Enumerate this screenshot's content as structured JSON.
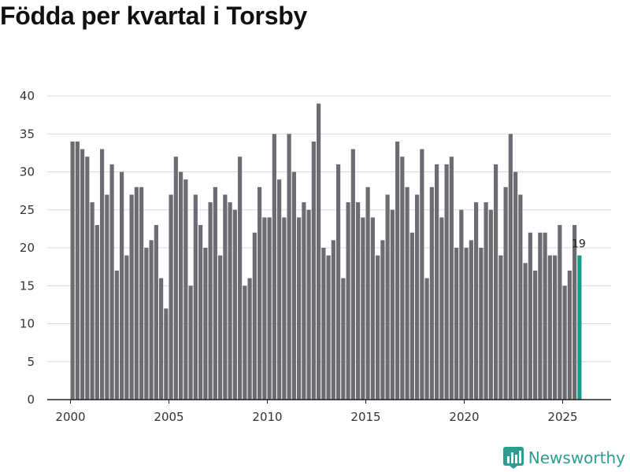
{
  "chart_data": {
    "type": "bar",
    "title": "Födda per kvartal i Torsby",
    "xlabel": "",
    "ylabel": "",
    "ylim": [
      0,
      40
    ],
    "y_ticks": [
      0,
      5,
      10,
      15,
      20,
      25,
      30,
      35,
      40
    ],
    "x_ticks": [
      2000,
      2005,
      2010,
      2015,
      2020,
      2025
    ],
    "grid": true,
    "start": {
      "year": 2000,
      "quarter": 1
    },
    "values": [
      34,
      34,
      33,
      32,
      26,
      23,
      33,
      27,
      31,
      17,
      30,
      19,
      27,
      28,
      28,
      20,
      21,
      23,
      16,
      12,
      27,
      32,
      30,
      29,
      15,
      27,
      23,
      20,
      26,
      28,
      19,
      27,
      26,
      25,
      32,
      15,
      16,
      22,
      28,
      24,
      24,
      35,
      29,
      24,
      35,
      30,
      24,
      26,
      25,
      34,
      39,
      20,
      19,
      21,
      31,
      16,
      26,
      33,
      26,
      24,
      28,
      24,
      19,
      21,
      27,
      25,
      34,
      32,
      28,
      22,
      27,
      33,
      16,
      28,
      31,
      24,
      31,
      32,
      20,
      25,
      20,
      21,
      26,
      20,
      26,
      25,
      31,
      19,
      28,
      35,
      30,
      27,
      18,
      22,
      17,
      22,
      22,
      19,
      19,
      23,
      15,
      17,
      23,
      19
    ],
    "highlight_last": true,
    "last_value_label": "19",
    "colors": {
      "bar": "#6d6c72",
      "highlight": "#1a9a8c",
      "grid": "#d9d9d9",
      "axis": "#222222"
    }
  },
  "brand": {
    "name": "Newsworthy",
    "icon": "bar-chart-icon",
    "color": "#2a9d8f"
  }
}
